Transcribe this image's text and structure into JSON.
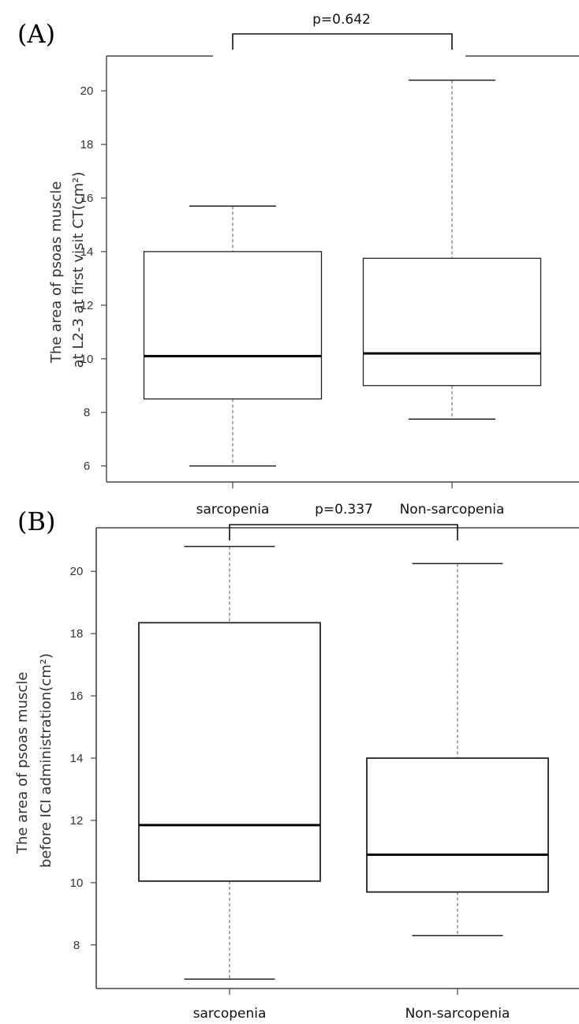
{
  "chart_data": [
    {
      "type": "box",
      "panel_label": "(A)",
      "categories": [
        "sarcopenia",
        "Non-sarcopenia"
      ],
      "ylabel_lines": [
        "The area of psoas muscle",
        "at L2-3 at first visit CT(cm²)"
      ],
      "ylim": [
        5.4,
        21.3
      ],
      "yticks": [
        6,
        8,
        10,
        12,
        14,
        16,
        18,
        20
      ],
      "grid": false,
      "boxes": [
        {
          "category": "sarcopenia",
          "min": 6.0,
          "q1": 8.5,
          "median": 10.1,
          "q3": 14.0,
          "max": 15.7
        },
        {
          "category": "Non-sarcopenia",
          "min": 7.75,
          "q1": 9.0,
          "median": 10.2,
          "q3": 13.75,
          "max": 20.4
        }
      ],
      "p_value": "p=0.642"
    },
    {
      "type": "box",
      "panel_label": "(B)",
      "categories": [
        "sarcopenia",
        "Non-sarcopenia"
      ],
      "ylabel_lines": [
        "The area of psoas muscle",
        "before ICI administration(cm²)"
      ],
      "ylim": [
        6.6,
        21.4
      ],
      "yticks": [
        8,
        10,
        12,
        14,
        16,
        18,
        20
      ],
      "grid": false,
      "boxes": [
        {
          "category": "sarcopenia",
          "min": 6.9,
          "q1": 10.05,
          "median": 11.85,
          "q3": 18.35,
          "max": 20.8
        },
        {
          "category": "Non-sarcopenia",
          "min": 8.3,
          "q1": 9.7,
          "median": 10.9,
          "q3": 14.0,
          "max": 20.25
        }
      ],
      "p_value": "p=0.337"
    }
  ]
}
